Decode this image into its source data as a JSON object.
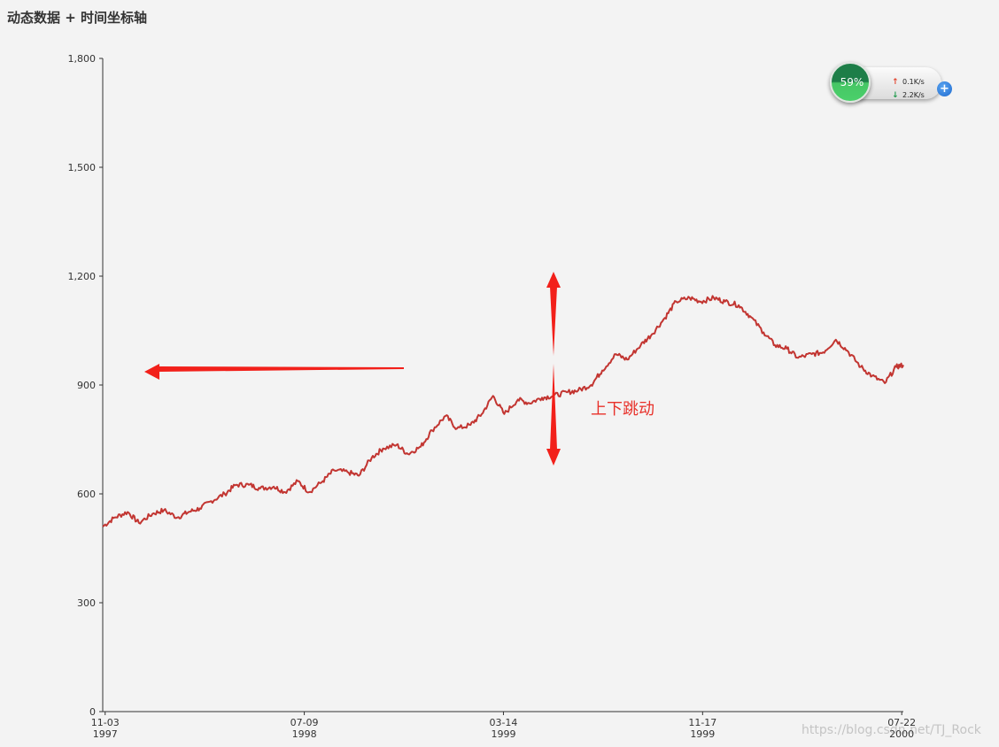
{
  "title": "动态数据 + 时间坐标轴",
  "chart_data": {
    "type": "line",
    "title": "动态数据 + 时间坐标轴",
    "xlabel": "",
    "ylabel": "",
    "xlim": [
      "1997-10-31",
      "2000-07-24"
    ],
    "ylim": [
      0,
      1800
    ],
    "y_ticks": [
      0,
      300,
      600,
      900,
      1200,
      1500,
      1800
    ],
    "y_tick_labels": [
      "0",
      "300",
      "600",
      "900",
      "1,200",
      "1,500",
      "1,800"
    ],
    "x_ticks": [
      {
        "date": "1997-11-03",
        "label_top": "11-03",
        "label_bottom": "1997"
      },
      {
        "date": "1998-07-09",
        "label_top": "07-09",
        "label_bottom": "1998"
      },
      {
        "date": "1999-03-14",
        "label_top": "03-14",
        "label_bottom": "1999"
      },
      {
        "date": "1999-11-17",
        "label_top": "11-17",
        "label_bottom": "1999"
      },
      {
        "date": "2000-07-22",
        "label_top": "07-22",
        "label_bottom": "2000"
      }
    ],
    "grid": false,
    "legend": "none",
    "line_color": "#c23531",
    "series": [
      {
        "x": [
          "1997-10-31",
          "1997-11-15",
          "1997-12-01",
          "1997-12-15",
          "1998-01-01",
          "1998-01-15",
          "1998-02-01",
          "1998-02-15",
          "1998-03-01",
          "1998-03-15",
          "1998-04-01",
          "1998-04-15",
          "1998-05-01",
          "1998-05-15",
          "1998-06-01",
          "1998-06-15",
          "1998-07-01",
          "1998-07-15",
          "1998-08-01",
          "1998-08-15",
          "1998-09-01",
          "1998-09-15",
          "1998-10-01",
          "1998-10-15",
          "1998-11-01",
          "1998-11-15",
          "1998-12-01",
          "1998-12-15",
          "1999-01-01",
          "1999-01-15",
          "1999-02-01",
          "1999-02-15",
          "1999-03-01",
          "1999-03-15",
          "1999-04-01",
          "1999-04-15",
          "1999-05-01",
          "1999-05-15",
          "1999-06-01",
          "1999-06-15",
          "1999-07-01",
          "1999-07-15",
          "1999-08-01",
          "1999-08-15",
          "1999-09-01",
          "1999-09-15",
          "1999-10-01",
          "1999-10-15",
          "1999-11-01",
          "1999-11-15",
          "1999-12-01",
          "1999-12-15",
          "2000-01-01",
          "2000-01-15",
          "2000-02-01",
          "2000-02-15",
          "2000-03-01",
          "2000-03-15",
          "2000-04-01",
          "2000-04-15",
          "2000-05-01",
          "2000-05-15",
          "2000-06-01",
          "2000-06-15",
          "2000-07-01",
          "2000-07-15",
          "2000-07-24"
        ],
        "values": [
          510,
          535,
          550,
          520,
          545,
          555,
          535,
          550,
          560,
          580,
          600,
          625,
          625,
          615,
          620,
          605,
          635,
          605,
          635,
          665,
          660,
          650,
          700,
          725,
          735,
          710,
          730,
          775,
          815,
          780,
          790,
          820,
          870,
          820,
          860,
          850,
          865,
          870,
          880,
          885,
          900,
          940,
          985,
          970,
          1010,
          1040,
          1085,
          1130,
          1140,
          1130,
          1140,
          1130,
          1120,
          1090,
          1045,
          1010,
          1000,
          975,
          985,
          990,
          1025,
          995,
          950,
          925,
          905,
          950,
          955
        ]
      }
    ],
    "annotations": [
      {
        "text": "上下跳动"
      }
    ]
  },
  "widget": {
    "percent": "59%",
    "upload": "0.1K/s",
    "download": "2.2K/s",
    "up_arrow": "↑",
    "down_arrow": "↓",
    "plus": "+"
  },
  "watermark": "https://blog.csdn.net/TJ_Rock"
}
